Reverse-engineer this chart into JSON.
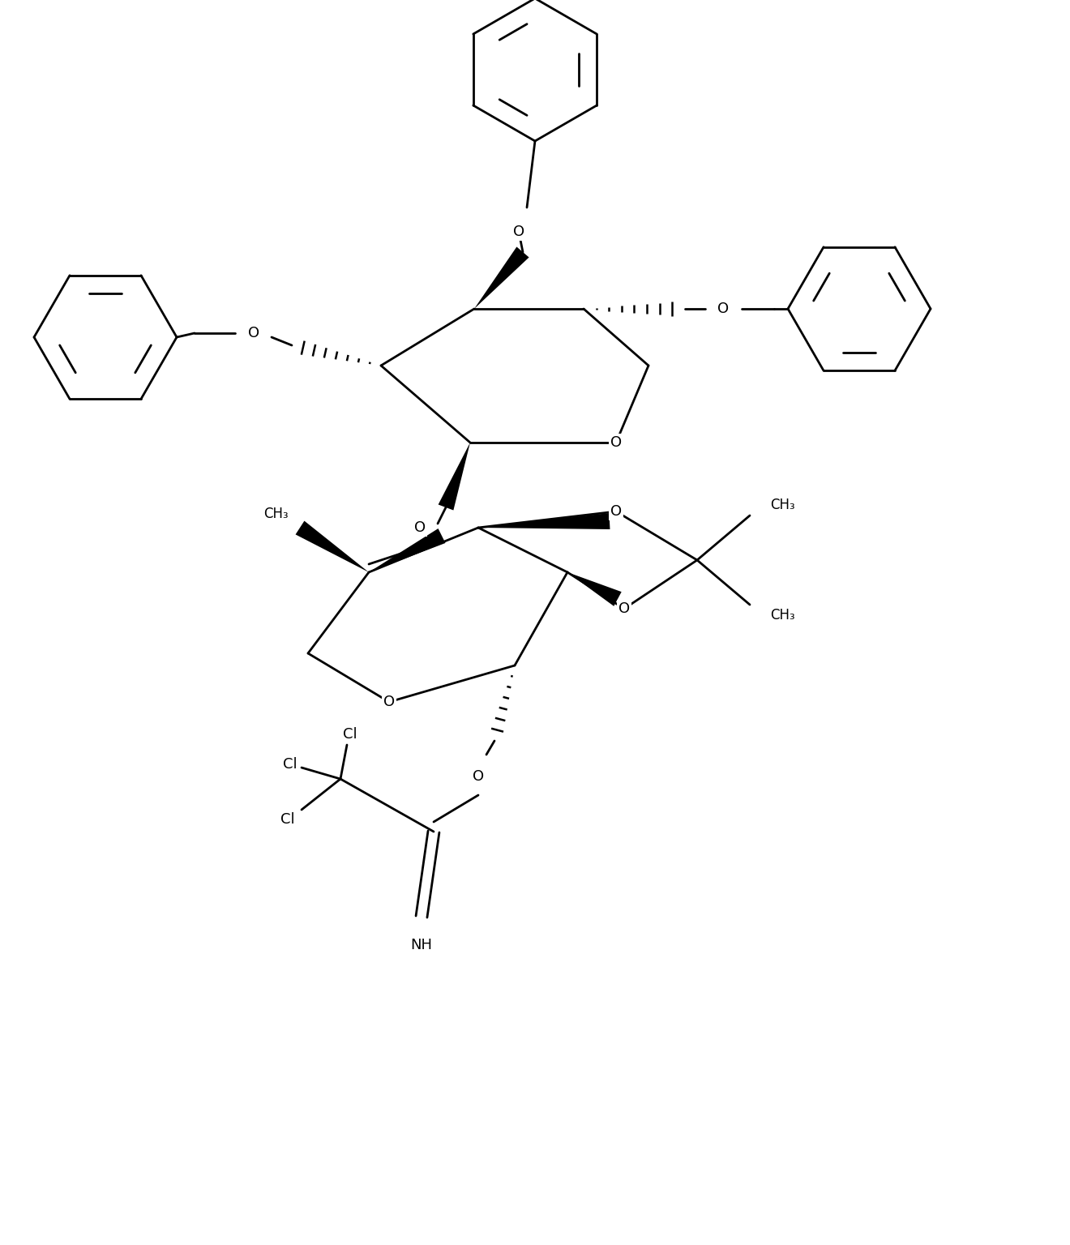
{
  "bg_color": "#ffffff",
  "line_color": "#000000",
  "lw": 2.0,
  "fs": 13,
  "figsize": [
    13.2,
    15.36
  ],
  "dpi": 100,
  "xlim": [
    0.0,
    13.2
  ],
  "ylim": [
    0.0,
    15.36
  ]
}
